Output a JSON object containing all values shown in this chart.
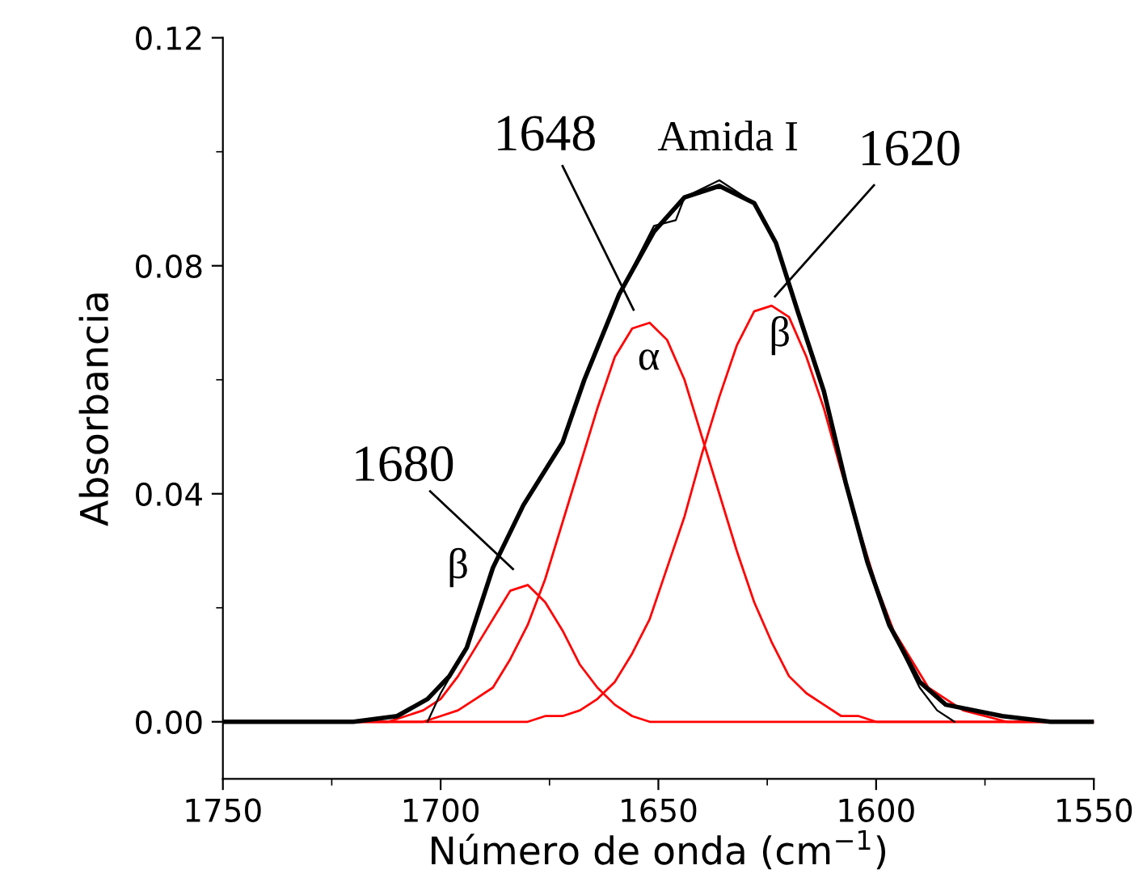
{
  "chart_data": {
    "type": "line",
    "xlabel": "Número de onda (cm$^{−1}$)",
    "ylabel": "Absorbancia",
    "x": [
      1750,
      1730,
      1720,
      1716,
      1712,
      1708,
      1704,
      1700,
      1696,
      1692,
      1688,
      1684,
      1680,
      1676,
      1672,
      1668,
      1664,
      1660,
      1656,
      1652,
      1648,
      1644,
      1640,
      1636,
      1632,
      1628,
      1624,
      1620,
      1616,
      1612,
      1608,
      1604,
      1600,
      1596,
      1592,
      1588,
      1584,
      1580,
      1570,
      1560,
      1550
    ],
    "series": [
      {
        "color": "#ff0000",
        "values": [
          0,
          0,
          0.0,
          0.0,
          0.0,
          0.001,
          0.002,
          0.004,
          0.008,
          0.013,
          0.018,
          0.023,
          0.024,
          0.021,
          0.016,
          0.01,
          0.006,
          0.003,
          0.001,
          0.0,
          0.0,
          0,
          0,
          0,
          0,
          0,
          0,
          0,
          0,
          0,
          0,
          0,
          0,
          0,
          0,
          0,
          0,
          0,
          0,
          0,
          0
        ]
      },
      {
        "color": "#ff0000",
        "values": [
          0,
          0,
          0,
          0.0,
          0.0,
          0.0,
          0.0,
          0.001,
          0.002,
          0.004,
          0.006,
          0.011,
          0.017,
          0.025,
          0.035,
          0.045,
          0.055,
          0.064,
          0.069,
          0.07,
          0.067,
          0.06,
          0.05,
          0.04,
          0.03,
          0.021,
          0.014,
          0.008,
          0.005,
          0.003,
          0.001,
          0.001,
          0.0,
          0,
          0,
          0,
          0,
          0,
          0,
          0,
          0
        ]
      },
      {
        "color": "#ff0000",
        "values": [
          0,
          0,
          0,
          0,
          0,
          0,
          0,
          0,
          0,
          0,
          0.0,
          0.0,
          0.0,
          0.001,
          0.001,
          0.002,
          0.004,
          0.007,
          0.012,
          0.018,
          0.027,
          0.036,
          0.047,
          0.057,
          0.066,
          0.072,
          0.073,
          0.071,
          0.064,
          0.055,
          0.044,
          0.034,
          0.024,
          0.016,
          0.011,
          0.006,
          0.004,
          0.002,
          0.0,
          0,
          0
        ]
      },
      {
        "color": "#000000",
        "x": [
          1703,
          1700,
          1694,
          1688,
          1681,
          1672,
          1667,
          1659,
          1651,
          1646,
          1644,
          1636,
          1628,
          1623,
          1618,
          1612,
          1607,
          1602,
          1597,
          1590,
          1586,
          1582
        ],
        "values": [
          0,
          0.005,
          0.013,
          0.027,
          0.038,
          0.049,
          0.06,
          0.075,
          0.087,
          0.088,
          0.092,
          0.095,
          0.091,
          0.084,
          0.072,
          0.058,
          0.042,
          0.028,
          0.017,
          0.006,
          0.002,
          0
        ]
      },
      {
        "color": "#000000",
        "x": [
          1750,
          1720,
          1710,
          1703,
          1698,
          1694,
          1688,
          1681,
          1672,
          1667,
          1659,
          1651,
          1644,
          1636,
          1628,
          1623,
          1618,
          1612,
          1607,
          1602,
          1597,
          1590,
          1584,
          1571,
          1560,
          1550
        ],
        "values": [
          0,
          0.0,
          0.001,
          0.004,
          0.008,
          0.013,
          0.027,
          0.038,
          0.049,
          0.06,
          0.075,
          0.086,
          0.092,
          0.094,
          0.091,
          0.084,
          0.072,
          0.058,
          0.042,
          0.028,
          0.017,
          0.007,
          0.003,
          0.001,
          0.0,
          0
        ]
      }
    ],
    "xlim": [
      1750,
      1550
    ],
    "xticks": [
      1750,
      1700,
      1650,
      1600,
      1550
    ],
    "ylim": [
      -0.01,
      0.12
    ],
    "yticks": [
      {
        "value": 0,
        "label": "0.00"
      },
      {
        "value": 0.04,
        "label": "0.04"
      },
      {
        "value": 0.08,
        "label": "0.08"
      },
      {
        "value": 0.12,
        "label": "0.12"
      }
    ],
    "grid": false,
    "annotations": [
      "Amida I",
      "1648",
      "1620",
      "1680",
      "β",
      "α",
      "β"
    ]
  }
}
